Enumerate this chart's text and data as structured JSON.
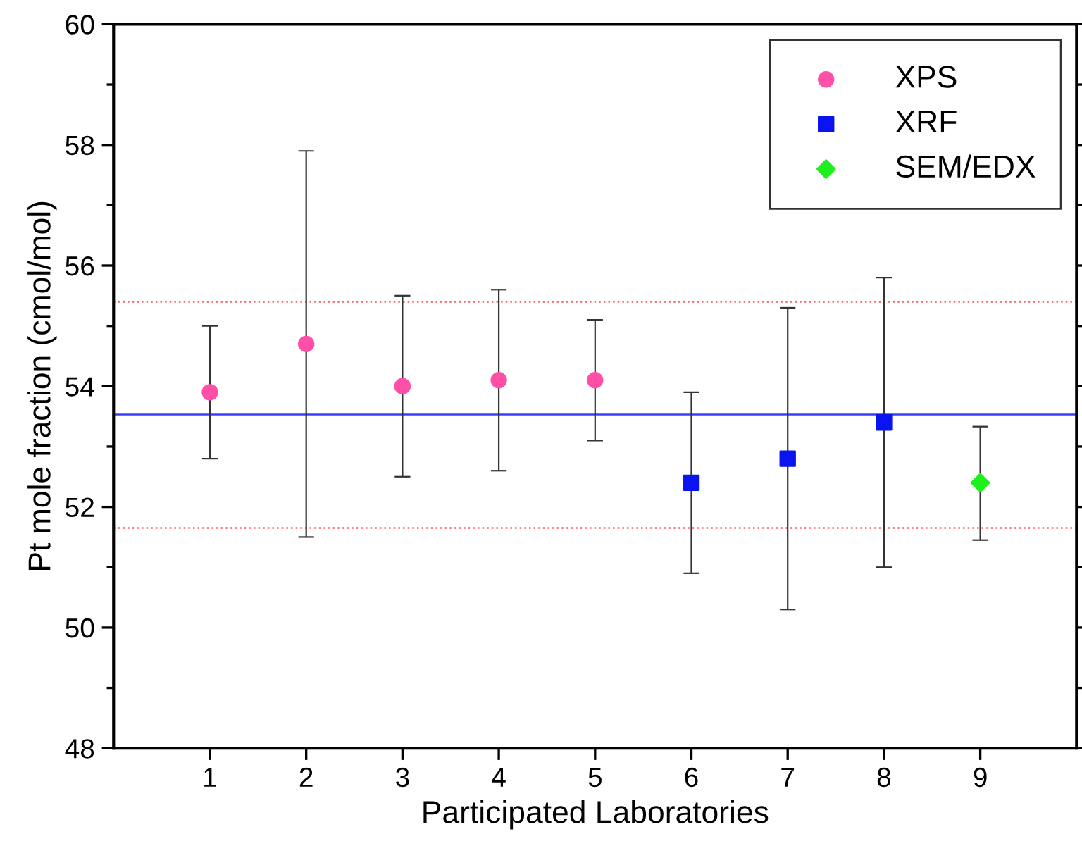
{
  "chart_data": {
    "type": "scatter",
    "xlabel": "Participated Laboratories",
    "ylabel": "Pt mole fraction (cmol/mol)",
    "xlim": [
      0,
      10
    ],
    "xticks": [
      1,
      2,
      3,
      4,
      5,
      6,
      7,
      8,
      9
    ],
    "ylim": [
      48,
      60
    ],
    "yticks": [
      48,
      50,
      52,
      54,
      56,
      58,
      60
    ],
    "series": [
      {
        "name": "XPS",
        "color": "#ff4fa7",
        "marker": "circle",
        "x": [
          1,
          2,
          3,
          4,
          5
        ],
        "values": [
          53.9,
          54.7,
          54.0,
          54.1,
          54.1
        ],
        "errors": [
          [
            52.8,
            55.0
          ],
          [
            51.5,
            57.9
          ],
          [
            52.5,
            55.5
          ],
          [
            52.6,
            55.6
          ],
          [
            53.1,
            55.1
          ]
        ]
      },
      {
        "name": "XRF",
        "color": "#0a14f0",
        "marker": "square",
        "x": [
          6,
          7,
          8
        ],
        "values": [
          52.4,
          52.8,
          53.4
        ],
        "errors": [
          [
            50.9,
            53.9
          ],
          [
            50.3,
            55.3
          ],
          [
            51.0,
            55.8
          ]
        ]
      },
      {
        "name": "SEM/EDX",
        "color": "#1ef01e",
        "marker": "diamond",
        "x": [
          9
        ],
        "values": [
          52.4
        ],
        "errors": [
          [
            51.45,
            53.33
          ]
        ]
      }
    ],
    "ref_lines": [
      {
        "axis": "y",
        "value": 53.53,
        "color": "#3c3cff",
        "line_style": "solid"
      },
      {
        "axis": "y",
        "value": 55.4,
        "color": "#ff6060",
        "line_style": "dotted"
      },
      {
        "axis": "y",
        "value": 51.65,
        "color": "#ff6060",
        "line_style": "dotted"
      }
    ],
    "legend": "top right",
    "grid": false
  }
}
